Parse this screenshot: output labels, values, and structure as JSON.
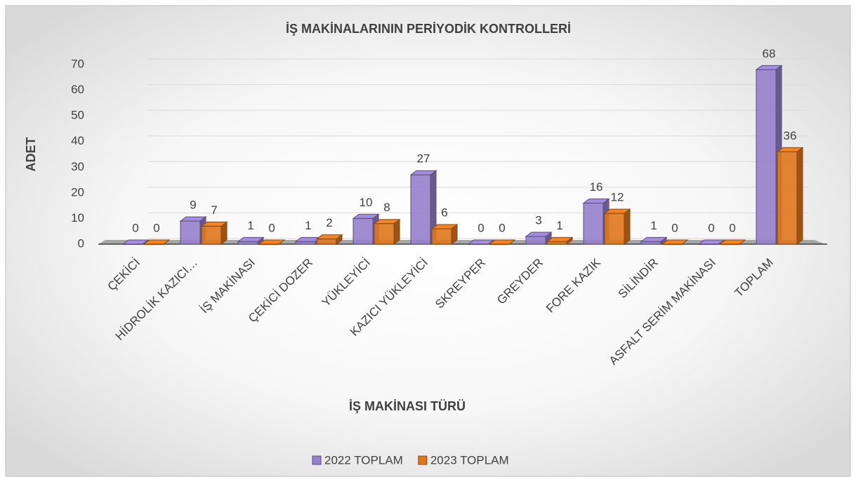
{
  "chart_data": {
    "type": "bar3d",
    "title": "İŞ MAKİNALARININ PERİYODİK KONTROLLERİ",
    "x_label": "İŞ MAKİNASI TÜRÜ",
    "y_label": "ADET",
    "categories": [
      "ÇEKİCİ",
      "HİDROLİK KAZICI…",
      "İŞ MAKİNASI",
      "ÇEKİCİ DOZER",
      "YÜKLEYİCİ",
      "KAZICI YÜKLEYİCİ",
      "SKREYPER",
      "GREYDER",
      "FORE KAZIK",
      "SİLİNDİR",
      "ASFALT SERİM MAKİNASI",
      "TOPLAM"
    ],
    "series": [
      {
        "name": "2022 TOPLAM",
        "color": "#9580cc",
        "values": [
          0,
          9,
          1,
          1,
          10,
          27,
          0,
          3,
          16,
          1,
          0,
          68
        ]
      },
      {
        "name": "2023 TOPLAM",
        "color": "#e0771c",
        "values": [
          0,
          7,
          0,
          2,
          8,
          6,
          0,
          1,
          12,
          0,
          0,
          36
        ]
      }
    ],
    "ylim": [
      0,
      70
    ],
    "yticks": [
      0,
      10,
      20,
      30,
      40,
      50,
      60,
      70
    ],
    "grid": true,
    "legend": "bottom"
  }
}
